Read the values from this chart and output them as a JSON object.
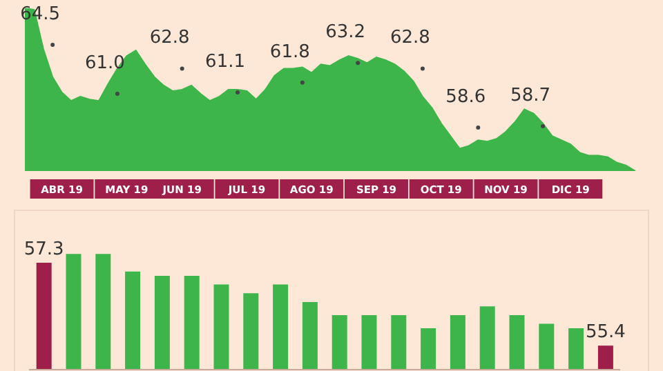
{
  "chart_data": [
    {
      "type": "area",
      "categories": [
        null,
        null,
        null,
        null,
        "ABR 19",
        null,
        null,
        null,
        null,
        null,
        null,
        "MAY 19",
        null,
        null,
        null,
        null,
        null,
        "JUN 19",
        null,
        null,
        null,
        null,
        null,
        null,
        "JUL 19",
        null,
        null,
        null,
        null,
        null,
        null,
        "AGO 19",
        null,
        null,
        null,
        null,
        null,
        null,
        "SEP 19",
        null,
        null,
        null,
        null,
        null,
        null,
        "OCT 19",
        null,
        null,
        null,
        null,
        null,
        null,
        "NOV 19",
        null,
        null,
        null,
        null,
        null,
        null,
        "DIC 19",
        null,
        null,
        null,
        null,
        null,
        null,
        null
      ],
      "series": [
        {
          "type": "area",
          "color": "#3db54a",
          "values": [
            67.1,
            67.0,
            64.2,
            62.2,
            61.1,
            60.5,
            60.8,
            60.6,
            60.5,
            61.7,
            62.8,
            63.7,
            64.1,
            63.1,
            62.2,
            61.6,
            61.2,
            61.3,
            61.6,
            61.0,
            60.5,
            60.8,
            61.3,
            61.3,
            61.2,
            60.6,
            61.3,
            62.3,
            62.8,
            62.8,
            62.9,
            62.5,
            63.1,
            63.0,
            63.4,
            63.7,
            63.5,
            63.2,
            63.6,
            63.4,
            63.1,
            62.6,
            61.9,
            60.8,
            60.0,
            58.9,
            58.0,
            57.1,
            57.3,
            57.7,
            57.6,
            57.8,
            58.3,
            59.0,
            59.9,
            59.6,
            58.9,
            58.0,
            57.7,
            57.4,
            56.8,
            56.6,
            56.6,
            56.5,
            56.1,
            55.9,
            55.5
          ]
        },
        {
          "type": "scatter",
          "color": "#444444",
          "marker": "circle",
          "values": [
            null,
            null,
            null,
            64.5,
            null,
            null,
            null,
            null,
            null,
            null,
            61.0,
            null,
            null,
            null,
            null,
            null,
            null,
            62.8,
            null,
            null,
            null,
            null,
            null,
            61.1,
            null,
            null,
            null,
            null,
            null,
            null,
            61.8,
            null,
            null,
            null,
            null,
            null,
            63.2,
            null,
            null,
            null,
            null,
            null,
            null,
            62.8,
            null,
            null,
            null,
            null,
            null,
            58.6,
            null,
            null,
            null,
            null,
            null,
            null,
            58.7,
            null,
            null,
            null,
            null,
            null,
            null,
            null,
            null,
            null,
            null
          ],
          "value_labels": [
            null,
            null,
            null,
            "64.5",
            null,
            null,
            null,
            null,
            null,
            null,
            "61.0",
            null,
            null,
            null,
            null,
            null,
            null,
            "62.8",
            null,
            null,
            null,
            null,
            null,
            "61.1",
            null,
            null,
            null,
            null,
            null,
            null,
            "61.8",
            null,
            null,
            null,
            null,
            null,
            "63.2",
            null,
            null,
            null,
            null,
            null,
            null,
            "62.8",
            null,
            null,
            null,
            null,
            null,
            "58.6",
            null,
            null,
            null,
            null,
            null,
            null,
            "58.7",
            null,
            null,
            null,
            null,
            null,
            null,
            null,
            null,
            null,
            null
          ]
        }
      ]
    },
    {
      "type": "bar",
      "ylim": [
        54.85,
        57.6
      ],
      "categories": [
        null,
        null,
        null,
        null,
        null,
        null,
        null,
        null,
        null,
        null,
        null,
        null,
        null,
        null,
        null,
        null,
        null,
        null,
        null,
        null
      ],
      "values": [
        57.3,
        57.5,
        57.5,
        57.1,
        57.0,
        57.0,
        56.8,
        56.6,
        56.8,
        56.4,
        56.1,
        56.1,
        56.1,
        55.8,
        56.1,
        56.3,
        56.1,
        55.9,
        55.8,
        55.4
      ],
      "colors": [
        "#9e1f4a",
        "#3db54a",
        "#3db54a",
        "#3db54a",
        "#3db54a",
        "#3db54a",
        "#3db54a",
        "#3db54a",
        "#3db54a",
        "#3db54a",
        "#3db54a",
        "#3db54a",
        "#3db54a",
        "#3db54a",
        "#3db54a",
        "#3db54a",
        "#3db54a",
        "#3db54a",
        "#3db54a",
        "#9e1f4a"
      ],
      "value_labels": [
        "57.3",
        null,
        null,
        null,
        null,
        null,
        null,
        null,
        null,
        null,
        null,
        null,
        null,
        null,
        null,
        null,
        null,
        null,
        null,
        "55.4"
      ]
    }
  ]
}
